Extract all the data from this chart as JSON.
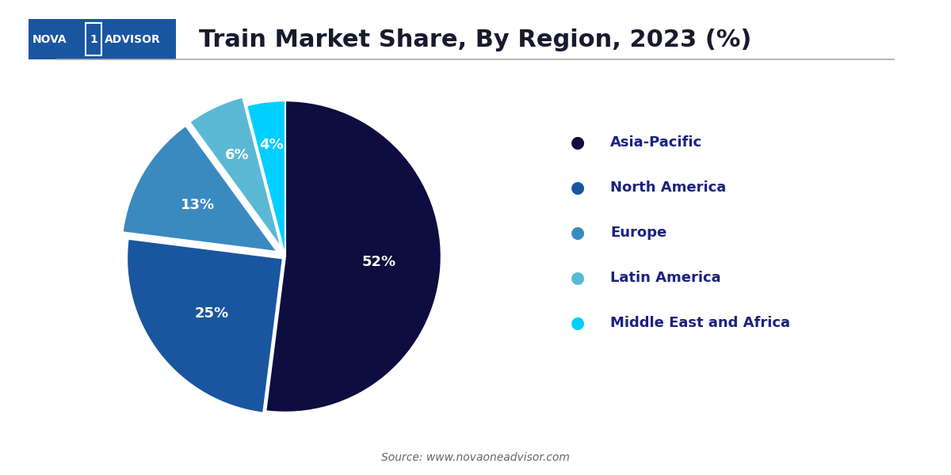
{
  "title": "Train Market Share, By Region, 2023 (%)",
  "title_fontsize": 22,
  "title_color": "#1a1a2e",
  "labels": [
    "Asia-Pacific",
    "North America",
    "Europe",
    "Latin America",
    "Middle East and Africa"
  ],
  "values": [
    52,
    25,
    13,
    6,
    4
  ],
  "colors": [
    "#0d0d40",
    "#1a56a0",
    "#3a8abf",
    "#5bb8d4",
    "#00cfff"
  ],
  "pct_labels": [
    "52%",
    "25%",
    "13%",
    "6%",
    "4%"
  ],
  "legend_text_color": "#1a237e",
  "source_text": "Source: www.novaoneadvisor.com",
  "background_color": "#ffffff",
  "startangle": 90,
  "explode": [
    0,
    0.02,
    0.06,
    0.06,
    0.0
  ],
  "logo_bg": "#1a56a0",
  "logo_text_color": "#ffffff",
  "line_color": "#aaaaaa"
}
